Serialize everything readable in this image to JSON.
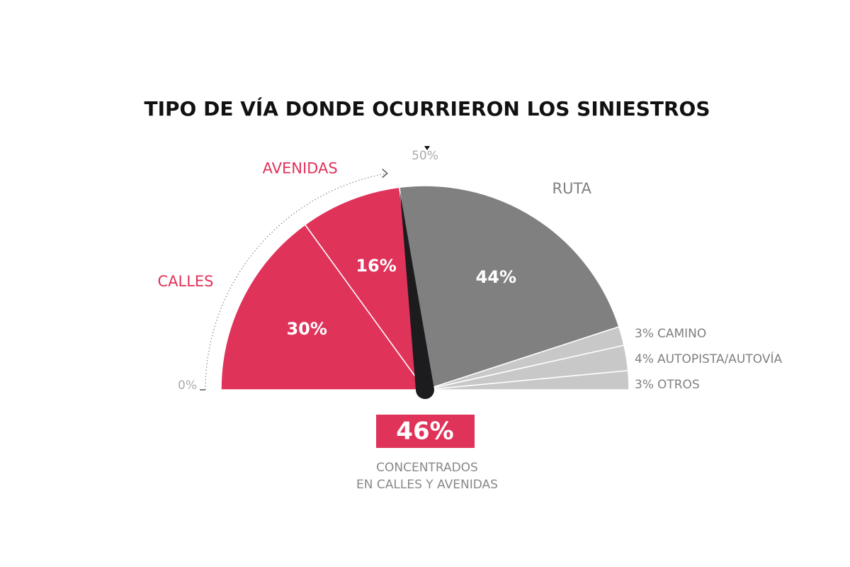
{
  "chart_data": {
    "type": "semi-donut",
    "title": "TIPO DE VÍA DONDE OCURRIERON LOS SINIESTROS",
    "categories": [
      "CALLES",
      "AVENIDAS",
      "RUTA",
      "CAMINO",
      "AUTOPISTA/AUTOVÍA",
      "OTROS"
    ],
    "values": [
      30,
      16,
      44,
      3,
      4,
      3
    ],
    "value_labels": [
      "30%",
      "16%",
      "44%",
      "3%",
      "4%",
      "3%"
    ],
    "colors": [
      "#e0335a",
      "#e0335a",
      "#808080",
      "#c8c8c8",
      "#c8c8c8",
      "#c8c8c8"
    ],
    "label_colors": [
      "#e0335a",
      "#e0335a",
      "#808080",
      "#808080",
      "#808080",
      "#808080"
    ],
    "ticks": [
      {
        "value": 0,
        "label": "0%"
      },
      {
        "value": 50,
        "label": "50%"
      }
    ],
    "needle": {
      "value": 46,
      "label": "46%"
    },
    "note": [
      "CONCENTRADOS",
      "EN CALLES Y AVENIDAS"
    ]
  }
}
